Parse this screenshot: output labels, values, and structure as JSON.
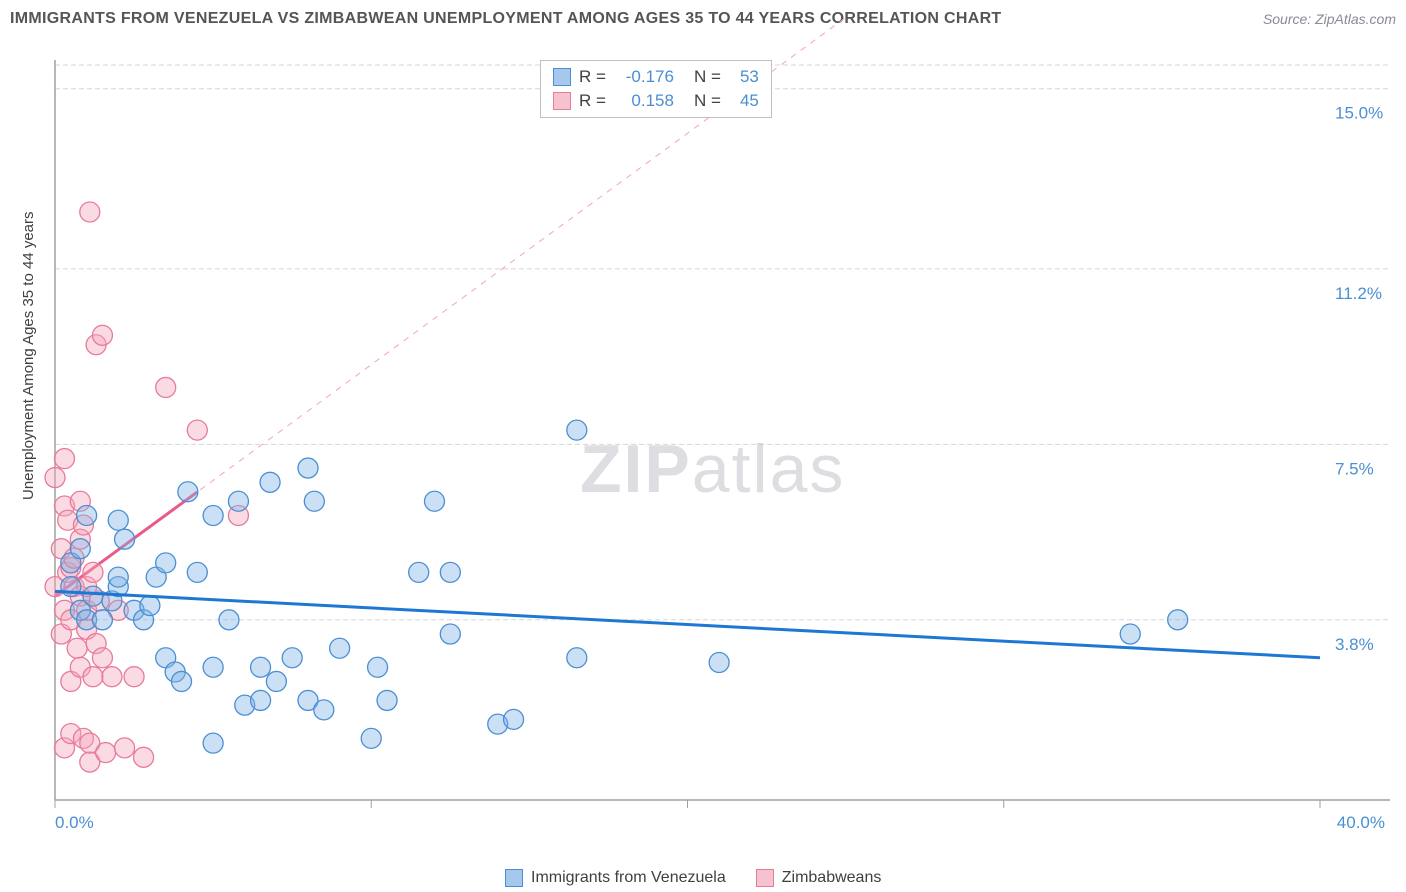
{
  "header": {
    "title": "IMMIGRANTS FROM VENEZUELA VS ZIMBABWEAN UNEMPLOYMENT AMONG AGES 35 TO 44 YEARS CORRELATION CHART",
    "source": "Source: ZipAtlas.com"
  },
  "y_axis_label": "Unemployment Among Ages 35 to 44 years",
  "watermark_zip": "ZIP",
  "watermark_atlas": "atlas",
  "chart": {
    "type": "scatter",
    "xlim": [
      0,
      40
    ],
    "ylim": [
      0,
      15.5
    ],
    "y_ticks": [
      {
        "val": 15.0,
        "label": "15.0%"
      },
      {
        "val": 11.2,
        "label": "11.2%"
      },
      {
        "val": 7.5,
        "label": "7.5%"
      },
      {
        "val": 3.8,
        "label": "3.8%"
      }
    ],
    "x_ticks": [
      {
        "val": 0,
        "label": "0.0%",
        "show_label": true
      },
      {
        "val": 10,
        "label": "",
        "show_label": false
      },
      {
        "val": 20,
        "label": "",
        "show_label": false
      },
      {
        "val": 30,
        "label": "",
        "show_label": false
      },
      {
        "val": 40,
        "label": "40.0%",
        "show_label": true
      }
    ],
    "background_color": "#ffffff",
    "grid_color": "#d5d5d5",
    "marker_radius": 10,
    "series": [
      {
        "name": "Immigrants from Venezuela",
        "color_fill": "#a5c8ec",
        "color_stroke": "#4a8fd3",
        "R": "-0.176",
        "N": "53",
        "trend": {
          "x1": 0,
          "y1": 4.4,
          "x2": 40,
          "y2": 3.0,
          "solid_until_x": 40
        },
        "points": [
          [
            0.5,
            4.5
          ],
          [
            0.5,
            5.0
          ],
          [
            0.8,
            4.0
          ],
          [
            0.8,
            5.3
          ],
          [
            1.0,
            6.0
          ],
          [
            1.0,
            3.8
          ],
          [
            1.2,
            4.3
          ],
          [
            1.5,
            3.8
          ],
          [
            1.8,
            4.2
          ],
          [
            2.0,
            4.5
          ],
          [
            2.0,
            5.9
          ],
          [
            2.0,
            4.7
          ],
          [
            2.2,
            5.5
          ],
          [
            2.5,
            4.0
          ],
          [
            2.8,
            3.8
          ],
          [
            3.0,
            4.1
          ],
          [
            3.2,
            4.7
          ],
          [
            3.5,
            3.0
          ],
          [
            3.5,
            5.0
          ],
          [
            3.8,
            2.7
          ],
          [
            4.0,
            2.5
          ],
          [
            4.2,
            6.5
          ],
          [
            4.5,
            4.8
          ],
          [
            5.0,
            2.8
          ],
          [
            5.0,
            6.0
          ],
          [
            5.0,
            1.2
          ],
          [
            5.5,
            3.8
          ],
          [
            5.8,
            6.3
          ],
          [
            6.0,
            2.0
          ],
          [
            6.5,
            2.8
          ],
          [
            6.5,
            2.1
          ],
          [
            6.8,
            6.7
          ],
          [
            7.0,
            2.5
          ],
          [
            7.5,
            3.0
          ],
          [
            8.0,
            2.1
          ],
          [
            8.0,
            7.0
          ],
          [
            8.2,
            6.3
          ],
          [
            8.5,
            1.9
          ],
          [
            9.0,
            3.2
          ],
          [
            10.0,
            1.3
          ],
          [
            10.2,
            2.8
          ],
          [
            10.5,
            2.1
          ],
          [
            11.5,
            4.8
          ],
          [
            12.0,
            6.3
          ],
          [
            12.5,
            3.5
          ],
          [
            12.5,
            4.8
          ],
          [
            14.0,
            1.6
          ],
          [
            14.5,
            1.7
          ],
          [
            16.5,
            3.0
          ],
          [
            16.5,
            7.8
          ],
          [
            21.0,
            2.9
          ],
          [
            34.0,
            3.5
          ],
          [
            35.5,
            3.8
          ]
        ]
      },
      {
        "name": "Zimbabweans",
        "color_fill": "#f7c2d0",
        "color_stroke": "#e87a9a",
        "R": "0.158",
        "N": "45",
        "trend": {
          "x1": 0,
          "y1": 4.3,
          "x2": 25,
          "y2": 16.5,
          "solid_until_x": 4.5
        },
        "points": [
          [
            0.0,
            6.8
          ],
          [
            0.0,
            4.5
          ],
          [
            0.2,
            3.5
          ],
          [
            0.2,
            5.3
          ],
          [
            0.3,
            1.1
          ],
          [
            0.3,
            7.2
          ],
          [
            0.3,
            4.0
          ],
          [
            0.3,
            6.2
          ],
          [
            0.4,
            4.8
          ],
          [
            0.4,
            5.9
          ],
          [
            0.5,
            2.5
          ],
          [
            0.5,
            3.8
          ],
          [
            0.5,
            4.9
          ],
          [
            0.5,
            1.4
          ],
          [
            0.6,
            5.1
          ],
          [
            0.6,
            4.5
          ],
          [
            0.7,
            3.2
          ],
          [
            0.8,
            2.8
          ],
          [
            0.8,
            5.5
          ],
          [
            0.8,
            6.3
          ],
          [
            0.8,
            4.3
          ],
          [
            0.9,
            1.3
          ],
          [
            0.9,
            5.8
          ],
          [
            1.0,
            4.0
          ],
          [
            1.0,
            3.6
          ],
          [
            1.0,
            4.5
          ],
          [
            1.1,
            0.8
          ],
          [
            1.1,
            12.4
          ],
          [
            1.1,
            1.2
          ],
          [
            1.2,
            4.8
          ],
          [
            1.2,
            2.6
          ],
          [
            1.3,
            3.3
          ],
          [
            1.3,
            9.6
          ],
          [
            1.4,
            4.2
          ],
          [
            1.5,
            9.8
          ],
          [
            1.5,
            3.0
          ],
          [
            1.6,
            1.0
          ],
          [
            1.8,
            2.6
          ],
          [
            2.0,
            4.0
          ],
          [
            2.2,
            1.1
          ],
          [
            2.5,
            2.6
          ],
          [
            2.8,
            0.9
          ],
          [
            3.5,
            8.7
          ],
          [
            4.5,
            7.8
          ],
          [
            5.8,
            6.0
          ]
        ]
      }
    ]
  },
  "stats_legend": [
    {
      "swatch": "blue",
      "R": "-0.176",
      "N": "53"
    },
    {
      "swatch": "pink",
      "R": "0.158",
      "N": "45"
    }
  ],
  "bottom_legend": [
    {
      "swatch": "blue",
      "label": "Immigrants from Venezuela"
    },
    {
      "swatch": "pink",
      "label": "Zimbabweans"
    }
  ]
}
